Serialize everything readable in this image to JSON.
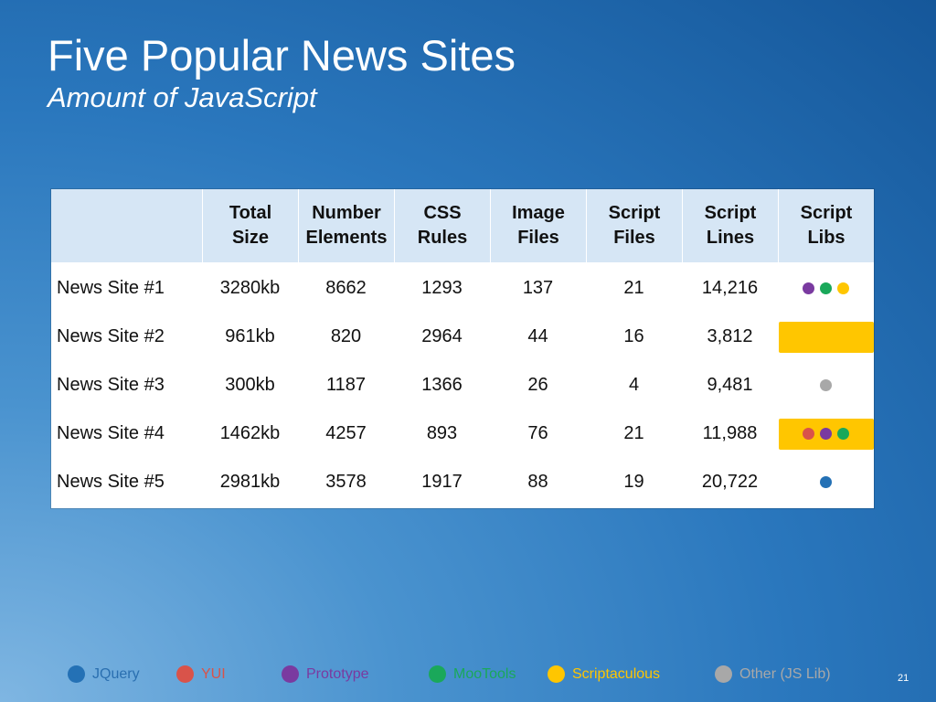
{
  "slide": {
    "title": "Five Popular News Sites",
    "subtitle": "Amount of JavaScript",
    "page_number": "21"
  },
  "table": {
    "headers": [
      "Total\nSize",
      "Number\nElements",
      "CSS\nRules",
      "Image\nFiles",
      "Script\nFiles",
      "Script\nLines",
      "Script\nLibs"
    ],
    "rows": [
      {
        "label": "News Site #1",
        "values": [
          "3280kb",
          "8662",
          "1293",
          "137",
          "21",
          "14,216"
        ],
        "libs": [
          "Prototype",
          "MooTools",
          "Scriptaculous"
        ],
        "highlight": ""
      },
      {
        "label": "News Site #2",
        "values": [
          "961kb",
          "820",
          "2964",
          "44",
          "16",
          "3,812"
        ],
        "libs": [],
        "highlight": "#ffc600"
      },
      {
        "label": "News Site #3",
        "values": [
          "300kb",
          "1187",
          "1366",
          "26",
          "4",
          "9,481"
        ],
        "libs": [
          "Other (JS Lib)"
        ],
        "highlight": ""
      },
      {
        "label": "News Site #4",
        "values": [
          "1462kb",
          "4257",
          "893",
          "76",
          "21",
          "11,988"
        ],
        "libs": [
          "YUI",
          "Prototype",
          "MooTools"
        ],
        "highlight": "#ffc600"
      },
      {
        "label": "News Site #5",
        "values": [
          "2981kb",
          "3578",
          "1917",
          "88",
          "19",
          "20,722"
        ],
        "libs": [
          "JQuery"
        ],
        "highlight": ""
      }
    ]
  },
  "legend": [
    {
      "name": "JQuery",
      "color": "#2471b5",
      "text_color": "#2a6fb0"
    },
    {
      "name": "YUI",
      "color": "#d9534a",
      "text_color": "#d9534a"
    },
    {
      "name": "Prototype",
      "color": "#7a3aa0",
      "text_color": "#7a3aa0"
    },
    {
      "name": "MooTools",
      "color": "#1aa85a",
      "text_color": "#1aa85a"
    },
    {
      "name": "Scriptaculous",
      "color": "#ffc600",
      "text_color": "#ffc600"
    },
    {
      "name": "Other (JS Lib)",
      "color": "#a8a8a8",
      "text_color": "#a8a8a8"
    }
  ]
}
